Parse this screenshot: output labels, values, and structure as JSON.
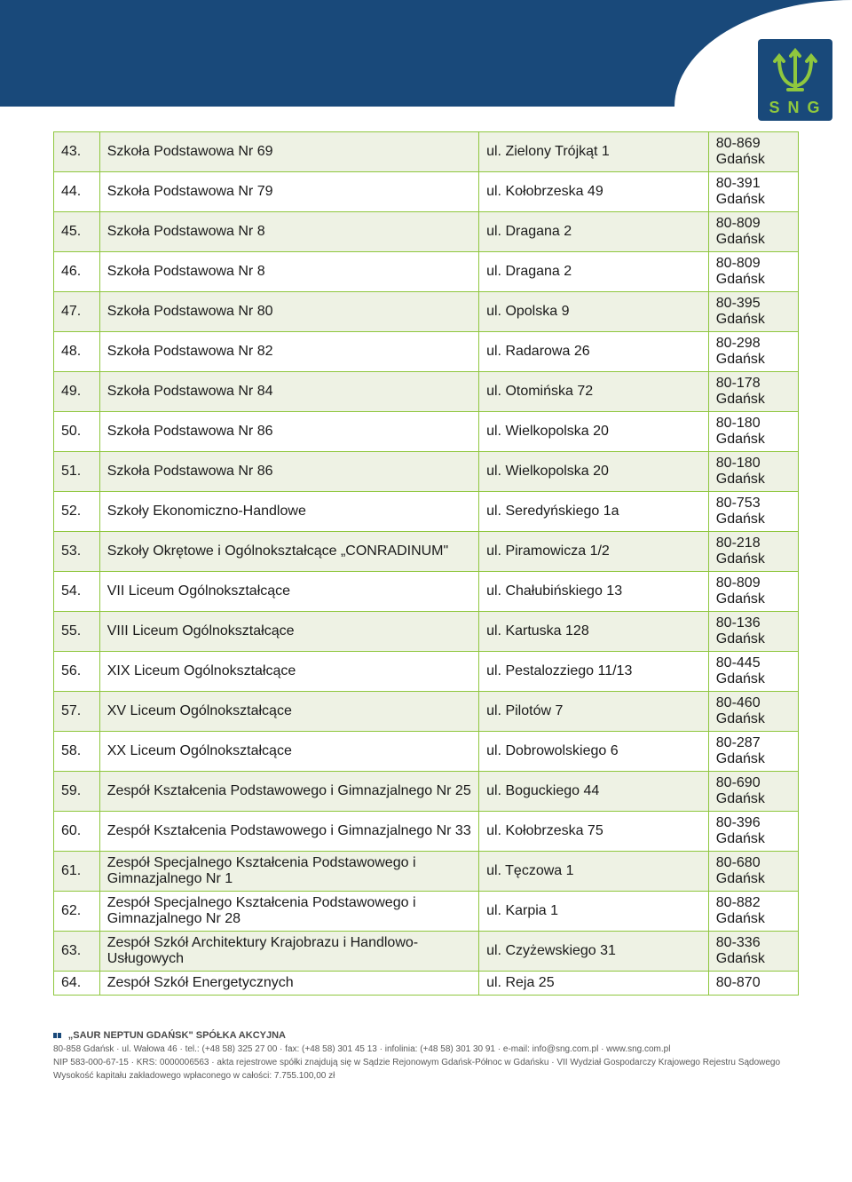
{
  "logo": {
    "text": "S N G"
  },
  "table": {
    "stripe_color": "#eef2e4",
    "border_color": "#8fc73e",
    "rows": [
      {
        "n": "43.",
        "name": "Szkoła Podstawowa Nr 69",
        "addr": "ul. Zielony Trójkąt 1",
        "code": "80-869\nGdańsk"
      },
      {
        "n": "44.",
        "name": "Szkoła Podstawowa Nr 79",
        "addr": "ul. Kołobrzeska 49",
        "code": "80-391\nGdańsk"
      },
      {
        "n": "45.",
        "name": "Szkoła Podstawowa Nr 8",
        "addr": "ul. Dragana 2",
        "code": "80-809\nGdańsk"
      },
      {
        "n": "46.",
        "name": "Szkoła Podstawowa Nr 8",
        "addr": "ul. Dragana 2",
        "code": "80-809\nGdańsk"
      },
      {
        "n": "47.",
        "name": "Szkoła Podstawowa Nr 80",
        "addr": "ul. Opolska 9",
        "code": "80-395\nGdańsk"
      },
      {
        "n": "48.",
        "name": "Szkoła Podstawowa Nr 82",
        "addr": "ul. Radarowa 26",
        "code": "80-298\nGdańsk"
      },
      {
        "n": "49.",
        "name": "Szkoła Podstawowa Nr 84",
        "addr": "ul. Otomińska 72",
        "code": "80-178\nGdańsk"
      },
      {
        "n": "50.",
        "name": "Szkoła Podstawowa Nr 86",
        "addr": "ul. Wielkopolska 20",
        "code": "80-180\nGdańsk"
      },
      {
        "n": "51.",
        "name": "Szkoła Podstawowa Nr 86",
        "addr": "ul. Wielkopolska 20",
        "code": "80-180\nGdańsk"
      },
      {
        "n": "52.",
        "name": "Szkoły Ekonomiczno-Handlowe",
        "addr": "ul. Seredyńskiego 1a",
        "code": "80-753\nGdańsk"
      },
      {
        "n": "53.",
        "name": "Szkoły Okrętowe i Ogólnokształcące „CONRADINUM\"",
        "addr": "ul. Piramowicza 1/2",
        "code": "80-218\nGdańsk"
      },
      {
        "n": "54.",
        "name": "VII Liceum Ogólnokształcące",
        "addr": "ul. Chałubińskiego 13",
        "code": "80-809\nGdańsk"
      },
      {
        "n": "55.",
        "name": "VIII Liceum Ogólnokształcące",
        "addr": "ul. Kartuska 128",
        "code": "80-136\nGdańsk"
      },
      {
        "n": "56.",
        "name": "XIX Liceum Ogólnokształcące",
        "addr": "ul. Pestalozziego 11/13",
        "code": "80-445\nGdańsk"
      },
      {
        "n": "57.",
        "name": "XV Liceum Ogólnokształcące",
        "addr": "ul. Pilotów 7",
        "code": "80-460\nGdańsk"
      },
      {
        "n": "58.",
        "name": "XX Liceum Ogólnokształcące",
        "addr": "ul. Dobrowolskiego 6",
        "code": "80-287\nGdańsk"
      },
      {
        "n": "59.",
        "name": "Zespół Kształcenia Podstawowego i Gimnazjalnego Nr 25",
        "addr": "ul. Boguckiego 44",
        "code": "80-690\nGdańsk"
      },
      {
        "n": "60.",
        "name": "Zespół Kształcenia Podstawowego i Gimnazjalnego Nr 33",
        "addr": "ul. Kołobrzeska 75",
        "code": "80-396\nGdańsk"
      },
      {
        "n": "61.",
        "name": "Zespół Specjalnego Kształcenia Podstawowego i Gimnazjalnego Nr 1",
        "addr": "ul. Tęczowa 1",
        "code": "80-680\nGdańsk"
      },
      {
        "n": "62.",
        "name": "Zespół Specjalnego Kształcenia Podstawowego i Gimnazjalnego Nr 28",
        "addr": "ul. Karpia 1",
        "code": "80-882\nGdańsk"
      },
      {
        "n": "63.",
        "name": "Zespół Szkół Architektury Krajobrazu i Handlowo-Usługowych",
        "addr": "ul. Czyżewskiego 31",
        "code": "80-336\nGdańsk"
      },
      {
        "n": "64.",
        "name": "Zespół Szkół Energetycznych",
        "addr": "ul. Reja 25",
        "code": "80-870"
      }
    ]
  },
  "footer": {
    "title": "„SAUR NEPTUN GDAŃSK\" SPÓŁKA AKCYJNA",
    "line1": "80-858 Gdańsk · ul. Wałowa 46 · tel.: (+48 58) 325 27 00 · fax: (+48 58) 301 45 13 · infolinia: (+48 58) 301 30 91 · e-mail: info@sng.com.pl · www.sng.com.pl",
    "line2": "NIP 583-000-67-15 · KRS: 0000006563 · akta rejestrowe spółki znajdują się w Sądzie Rejonowym Gdańsk-Północ w Gdańsku · VII Wydział Gospodarczy Krajowego Rejestru Sądowego",
    "line3": "Wysokość kapitału zakładowego wpłaconego w całości: 7.755.100,00 zł"
  }
}
